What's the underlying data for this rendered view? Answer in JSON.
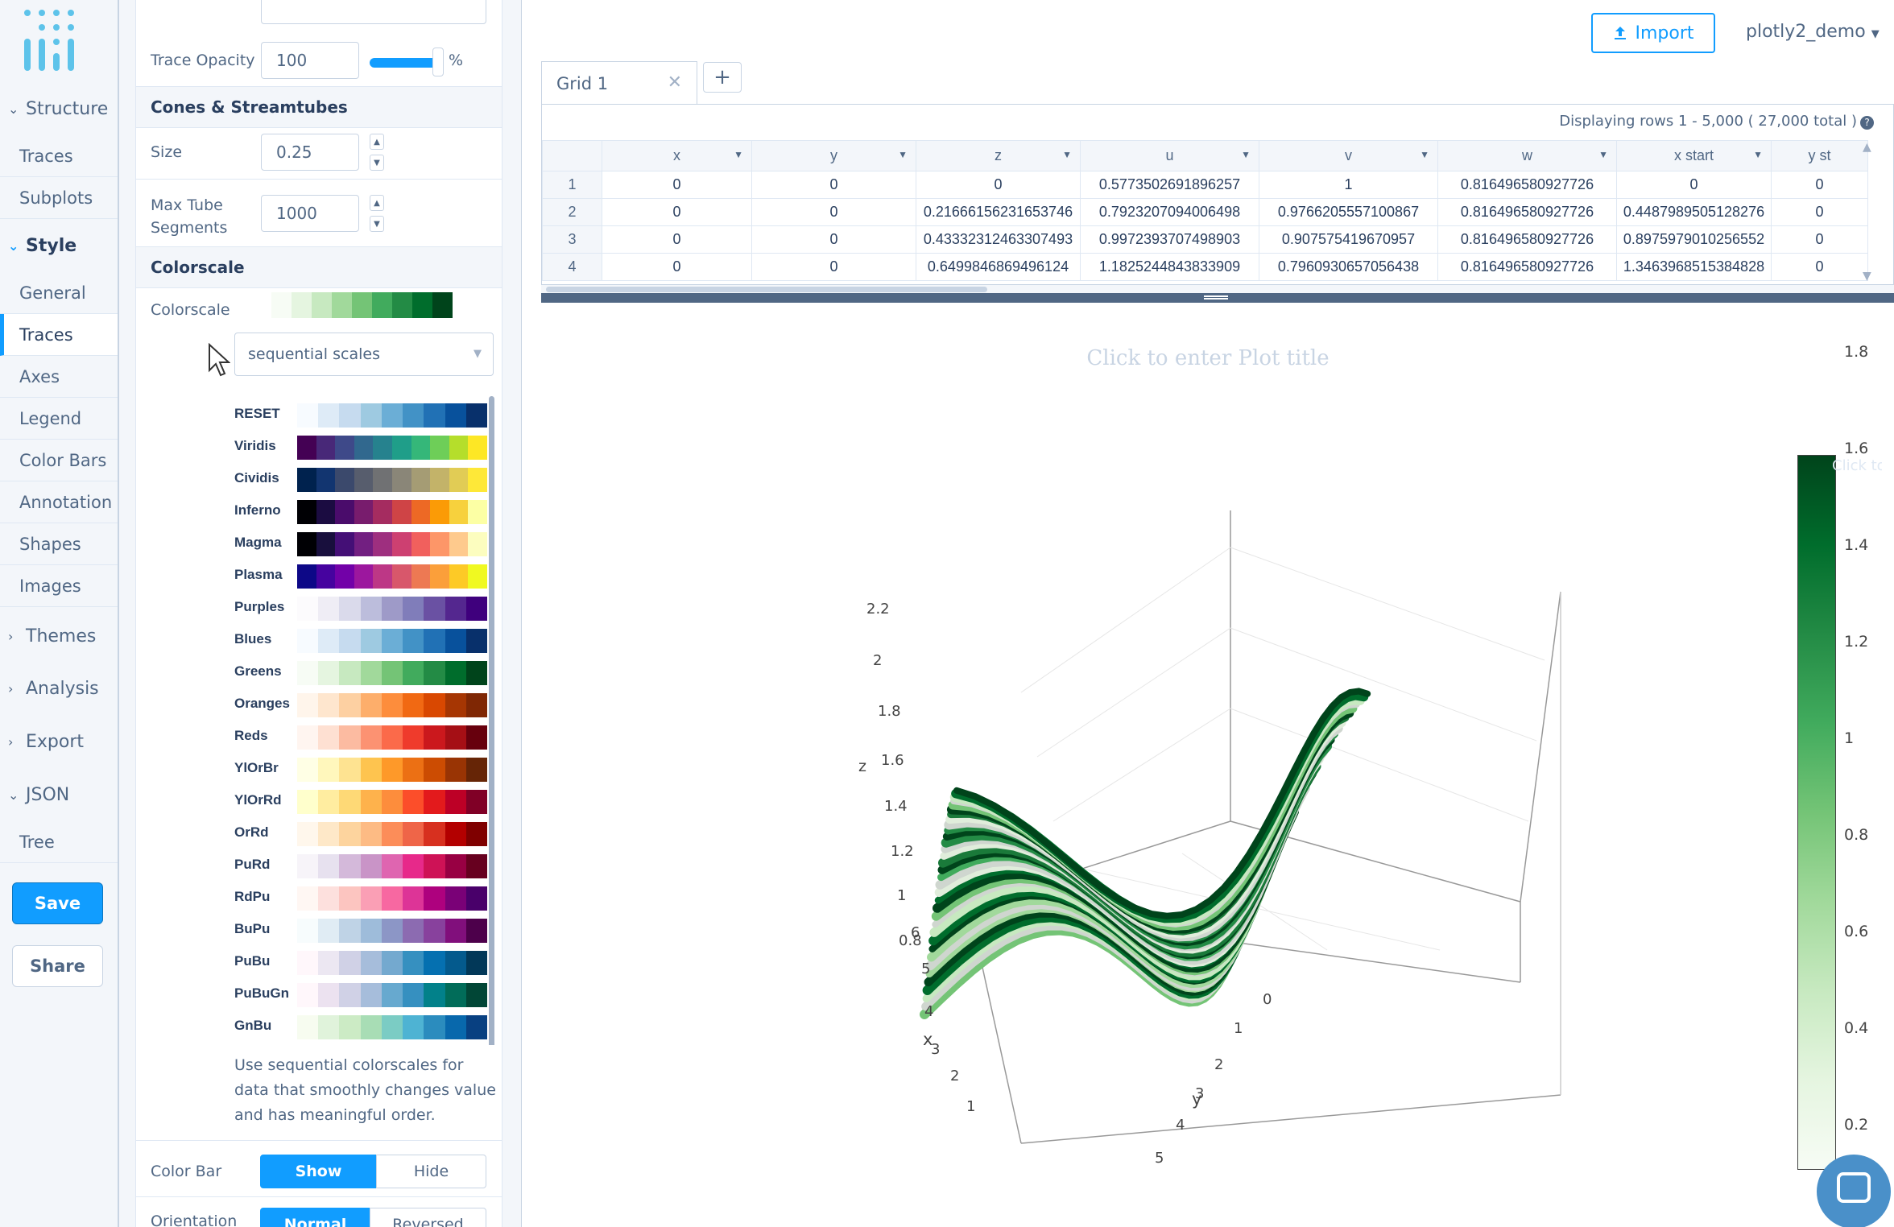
{
  "nav": {
    "structure_label": "Structure",
    "structure_items": [
      "Traces",
      "Subplots"
    ],
    "style_label": "Style",
    "style_items": [
      "General",
      "Traces",
      "Axes",
      "Legend",
      "Color Bars",
      "Annotation",
      "Shapes",
      "Images"
    ],
    "themes_label": "Themes",
    "analysis_label": "Analysis",
    "export_label": "Export",
    "json_label": "JSON",
    "json_items": [
      "Tree"
    ],
    "save_label": "Save",
    "share_label": "Share"
  },
  "panel": {
    "trace_opacity_label": "Trace Opacity",
    "trace_opacity_value": "100",
    "trace_opacity_unit": "%",
    "trace_opacity_level": 1.0,
    "cones_section": "Cones & Streamtubes",
    "size_label": "Size",
    "size_value": "0.25",
    "max_tube_label_1": "Max Tube",
    "max_tube_label_2": "Segments",
    "max_tube_value": "1000",
    "colorscale_section": "Colorscale",
    "colorscale_label": "Colorscale",
    "colorscale_preview": [
      "#f7fcf5",
      "#e5f5e0",
      "#c7e9c0",
      "#a1d99b",
      "#74c476",
      "#41ab5d",
      "#238b45",
      "#006d2c",
      "#00441b"
    ],
    "scale_category": "sequential scales",
    "scales": [
      {
        "name": "RESET",
        "colors": [
          "#f7fbff",
          "#deebf7",
          "#c6dbef",
          "#9ecae1",
          "#6baed6",
          "#4292c6",
          "#2171b5",
          "#08519c",
          "#08306b"
        ]
      },
      {
        "name": "Viridis",
        "colors": [
          "#440154",
          "#482878",
          "#3e4989",
          "#31688e",
          "#26828e",
          "#1f9e89",
          "#35b779",
          "#6ece58",
          "#b5de2b",
          "#fde725"
        ]
      },
      {
        "name": "Cividis",
        "colors": [
          "#00224e",
          "#123570",
          "#3b496c",
          "#575d6d",
          "#707173",
          "#8a8678",
          "#a59c74",
          "#c3b369",
          "#e1cc55",
          "#fee838"
        ]
      },
      {
        "name": "Inferno",
        "colors": [
          "#000004",
          "#1b0c41",
          "#4a0c6b",
          "#781c6d",
          "#a52c60",
          "#cf4446",
          "#ed6925",
          "#fb9b06",
          "#f7d13d",
          "#fcffa4"
        ]
      },
      {
        "name": "Magma",
        "colors": [
          "#000004",
          "#180f3d",
          "#440f76",
          "#721f81",
          "#9e2f7f",
          "#cd4071",
          "#f1605d",
          "#fd9668",
          "#feca8d",
          "#fcfdbf"
        ]
      },
      {
        "name": "Plasma",
        "colors": [
          "#0d0887",
          "#46039f",
          "#7201a8",
          "#9c179e",
          "#bd3786",
          "#d8576b",
          "#ed7953",
          "#fb9f3a",
          "#fdca26",
          "#f0f921"
        ]
      },
      {
        "name": "Purples",
        "colors": [
          "#fcfbfd",
          "#efedf5",
          "#dadaeb",
          "#bcbddc",
          "#9e9ac8",
          "#807dba",
          "#6a51a3",
          "#54278f",
          "#3f007d"
        ]
      },
      {
        "name": "Blues",
        "colors": [
          "#f7fbff",
          "#deebf7",
          "#c6dbef",
          "#9ecae1",
          "#6baed6",
          "#4292c6",
          "#2171b5",
          "#08519c",
          "#08306b"
        ]
      },
      {
        "name": "Greens",
        "colors": [
          "#f7fcf5",
          "#e5f5e0",
          "#c7e9c0",
          "#a1d99b",
          "#74c476",
          "#41ab5d",
          "#238b45",
          "#006d2c",
          "#00441b"
        ]
      },
      {
        "name": "Oranges",
        "colors": [
          "#fff5eb",
          "#fee6ce",
          "#fdd0a2",
          "#fdae6b",
          "#fd8d3c",
          "#f16913",
          "#d94801",
          "#a63603",
          "#7f2704"
        ]
      },
      {
        "name": "Reds",
        "colors": [
          "#fff5f0",
          "#fee0d2",
          "#fcbba1",
          "#fc9272",
          "#fb6a4a",
          "#ef3b2c",
          "#cb181d",
          "#a50f15",
          "#67000d"
        ]
      },
      {
        "name": "YlOrBr",
        "colors": [
          "#ffffe5",
          "#fff7bc",
          "#fee391",
          "#fec44f",
          "#fe9929",
          "#ec7014",
          "#cc4c02",
          "#993404",
          "#662506"
        ]
      },
      {
        "name": "YlOrRd",
        "colors": [
          "#ffffcc",
          "#ffeda0",
          "#fed976",
          "#feb24c",
          "#fd8d3c",
          "#fc4e2a",
          "#e31a1c",
          "#bd0026",
          "#800026"
        ]
      },
      {
        "name": "OrRd",
        "colors": [
          "#fff7ec",
          "#fee8c8",
          "#fdd49e",
          "#fdbb84",
          "#fc8d59",
          "#ef6548",
          "#d7301f",
          "#b30000",
          "#7f0000"
        ]
      },
      {
        "name": "PuRd",
        "colors": [
          "#f7f4f9",
          "#e7e1ef",
          "#d4b9da",
          "#c994c7",
          "#df65b0",
          "#e7298a",
          "#ce1256",
          "#980043",
          "#67001f"
        ]
      },
      {
        "name": "RdPu",
        "colors": [
          "#fff7f3",
          "#fde0dd",
          "#fcc5c0",
          "#fa9fb5",
          "#f768a1",
          "#dd3497",
          "#ae017e",
          "#7a0177",
          "#49006a"
        ]
      },
      {
        "name": "BuPu",
        "colors": [
          "#f7fcfd",
          "#e0ecf4",
          "#bfd3e6",
          "#9ebcda",
          "#8c96c6",
          "#8c6bb1",
          "#88419d",
          "#810f7c",
          "#4d004b"
        ]
      },
      {
        "name": "PuBu",
        "colors": [
          "#fff7fb",
          "#ece7f2",
          "#d0d1e6",
          "#a6bddb",
          "#74a9cf",
          "#3690c0",
          "#0570b0",
          "#045a8d",
          "#023858"
        ]
      },
      {
        "name": "PuBuGn",
        "colors": [
          "#fff7fb",
          "#ece2f0",
          "#d0d1e6",
          "#a6bddb",
          "#67a9cf",
          "#3690c0",
          "#02818a",
          "#016c59",
          "#014636"
        ]
      },
      {
        "name": "GnBu",
        "colors": [
          "#f7fcf0",
          "#e0f3db",
          "#ccebc5",
          "#a8ddb5",
          "#7bccc4",
          "#4eb3d3",
          "#2b8cbe",
          "#0868ac",
          "#084081"
        ]
      }
    ],
    "help_text": "Use sequential colorscales for data that smoothly changes value and has meaningful order.",
    "colorbar_label": "Color Bar",
    "colorbar_show": "Show",
    "colorbar_hide": "Hide",
    "orientation_label": "Orientation",
    "orientation_normal": "Normal",
    "orientation_reversed": "Reversed"
  },
  "header": {
    "import_label": "Import",
    "user": "plotly2_demo"
  },
  "grid": {
    "tab_label": "Grid 1",
    "status": "Displaying rows 1 - 5,000 ( 27,000 total )",
    "columns": [
      "x",
      "y",
      "z",
      "u",
      "v",
      "w",
      "x start",
      "y st"
    ],
    "rows": [
      [
        "1",
        "0",
        "0",
        "0",
        "0.5773502691896257",
        "1",
        "0.816496580927726",
        "0",
        "0"
      ],
      [
        "2",
        "0",
        "0",
        "0.21666156231653746",
        "0.7923207094006498",
        "0.9766205557100867",
        "0.816496580927726",
        "0.4487989505128276",
        "0"
      ],
      [
        "3",
        "0",
        "0",
        "0.43332312463307493",
        "0.9972393707498903",
        "0.907575419670957",
        "0.816496580927726",
        "0.8975979010256552",
        "0"
      ],
      [
        "4",
        "0",
        "0",
        "0.6499846869496124",
        "1.1825244843833909",
        "0.7960930657056438",
        "0.816496580927726",
        "1.3463968515384828",
        "0"
      ]
    ]
  },
  "plot": {
    "title_placeholder": "Click to enter Plot title",
    "colorbar_title_placeholder": "Click to enter Colorscale title",
    "colorbar_ticks": [
      "1.8",
      "1.6",
      "1.4",
      "1.2",
      "1",
      "0.8",
      "0.6",
      "0.4",
      "0.2"
    ],
    "colorbar_colors": [
      "#00441b",
      "#006d2c",
      "#238b45",
      "#41ab5d",
      "#74c476",
      "#a1d99b",
      "#c7e9c0",
      "#e5f5e0",
      "#f7fcf5"
    ],
    "z_label": "z",
    "z_ticks": [
      "2.2",
      "2",
      "1.8",
      "1.6",
      "1.4",
      "1.2",
      "1",
      "0.8"
    ],
    "x_label": "x",
    "x_ticks": [
      "6",
      "5",
      "4",
      "3",
      "2",
      "1"
    ],
    "y_label": "y",
    "y_ticks": [
      "0",
      "1",
      "2",
      "3",
      "4",
      "5"
    ]
  }
}
